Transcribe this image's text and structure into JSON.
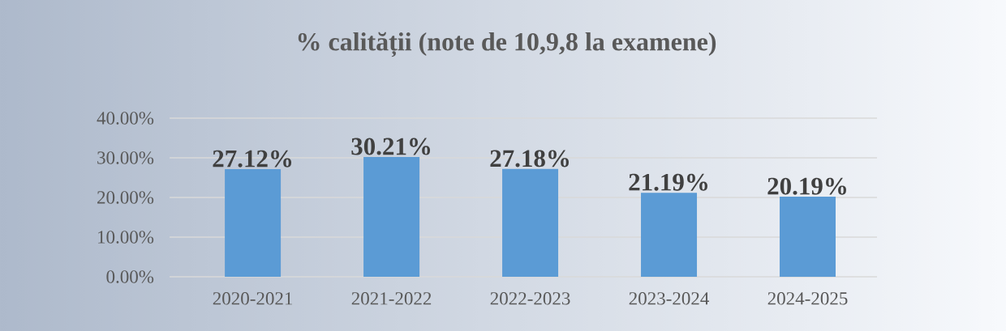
{
  "chart_data": {
    "type": "bar",
    "title": "% calității (note de 10,9,8 la examene)",
    "categories": [
      "2020-2021",
      "2021-2022",
      "2022-2023",
      "2023-2024",
      "2024-2025"
    ],
    "values": [
      27.12,
      30.21,
      27.18,
      21.19,
      20.19
    ],
    "value_labels": [
      "27.12%",
      "30.21%",
      "27.18%",
      "21.19%",
      "20.19%"
    ],
    "color": "#5b9bd5",
    "ylim": [
      0,
      40
    ],
    "yticks": [
      {
        "value": 0,
        "label": "0.00%"
      },
      {
        "value": 10,
        "label": "10.00%"
      },
      {
        "value": 20,
        "label": "20.00%"
      },
      {
        "value": 30,
        "label": "30.00%"
      },
      {
        "value": 40,
        "label": "40.00%"
      }
    ],
    "grid": "y"
  }
}
